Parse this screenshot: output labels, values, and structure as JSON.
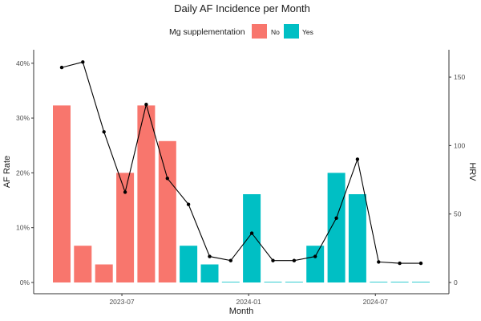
{
  "chart_data": {
    "type": "bar+line",
    "title": "Daily AF Incidence per Month",
    "xlabel": "Month",
    "ylabel_left": "AF Rate",
    "ylabel_right": "HRV",
    "x_ticks": [
      "2023-07",
      "2024-01",
      "2024-07"
    ],
    "y_left_ticks": [
      "0%",
      "10%",
      "20%",
      "30%",
      "40%"
    ],
    "y_left_range": [
      0,
      0.42
    ],
    "y_right_ticks": [
      "0",
      "50",
      "100",
      "150"
    ],
    "y_right_range": [
      0,
      168
    ],
    "legend": {
      "title": "Mg supplementation",
      "position": "top",
      "items": [
        {
          "label": "No",
          "color": "#F8766D"
        },
        {
          "label": "Yes",
          "color": "#00BFC4"
        }
      ]
    },
    "months": [
      "2023-04",
      "2023-05",
      "2023-06",
      "2023-07",
      "2023-08",
      "2023-09",
      "2023-10",
      "2023-11",
      "2023-12",
      "2024-01",
      "2024-02",
      "2024-03",
      "2024-04",
      "2024-05",
      "2024-06",
      "2024-07",
      "2024-08",
      "2024-09"
    ],
    "af_rate": [
      0.323,
      0.067,
      0.033,
      0.2,
      0.323,
      0.258,
      0.067,
      0.033,
      0.0,
      0.161,
      0.0,
      0.0,
      0.067,
      0.2,
      0.161,
      0.0,
      0.0,
      0.0
    ],
    "mg_supplementation": [
      "No",
      "No",
      "No",
      "No",
      "No",
      "No",
      "Yes",
      "Yes",
      "Yes",
      "Yes",
      "Yes",
      "Yes",
      "Yes",
      "Yes",
      "Yes",
      "Yes",
      "Yes",
      "Yes"
    ],
    "hrv": [
      157,
      161,
      110,
      66,
      130,
      76,
      57,
      19,
      16,
      36,
      16,
      16,
      19,
      47,
      90,
      15,
      14,
      14
    ]
  }
}
